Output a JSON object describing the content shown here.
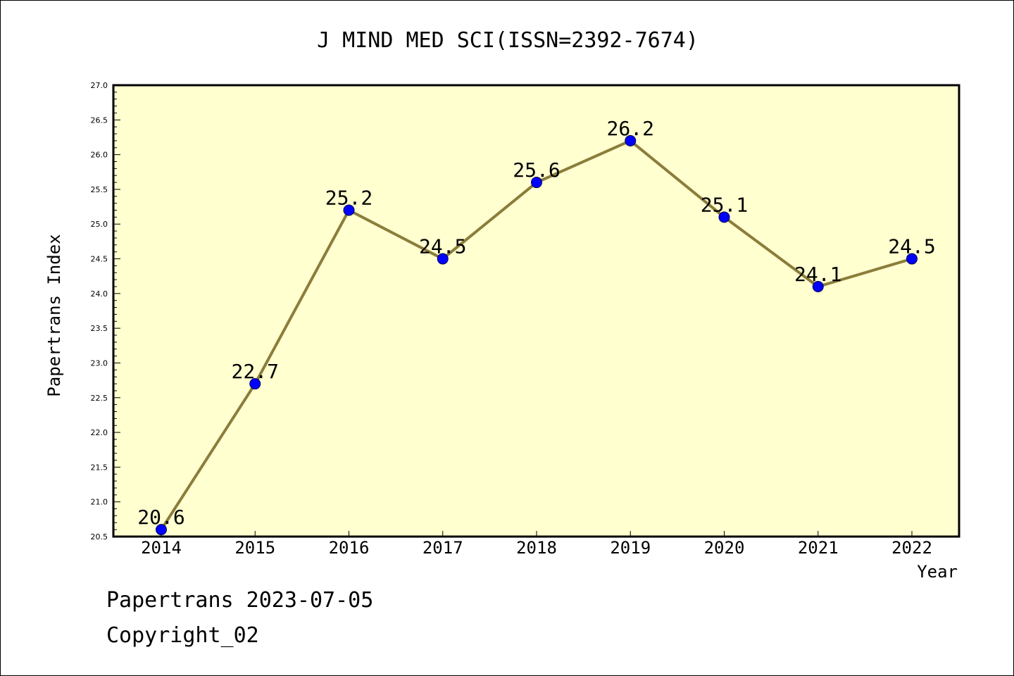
{
  "footer": {
    "line1": "Papertrans 2023-07-05",
    "line2": "Copyright_02"
  },
  "chart_data": {
    "type": "line",
    "title": "J MIND MED SCI(ISSN=2392-7674)",
    "xlabel": "Year",
    "ylabel": "Papertrans Index",
    "categories": [
      "2014",
      "2015",
      "2016",
      "2017",
      "2018",
      "2019",
      "2020",
      "2021",
      "2022"
    ],
    "series": [
      {
        "values": [
          20.6,
          22.7,
          25.2,
          24.5,
          25.6,
          26.2,
          25.1,
          24.1,
          24.5
        ]
      }
    ],
    "data_labels": [
      "20.6",
      "22.7",
      "25.2",
      "24.5",
      "25.6",
      "26.2",
      "25.1",
      "24.1",
      "24.5"
    ],
    "ylim": [
      20.5,
      27.0
    ],
    "yticks": [
      "20.5",
      "21.0",
      "21.5",
      "22.0",
      "22.5",
      "23.0",
      "23.5",
      "24.0",
      "24.5",
      "25.0",
      "25.5",
      "26.0",
      "26.5",
      "27.0"
    ],
    "grid": false,
    "legend": "none",
    "colors": {
      "plot_background": "#ffffd0",
      "line": "#8b7d3a",
      "marker": "#0000ff",
      "axis": "#000000"
    }
  }
}
